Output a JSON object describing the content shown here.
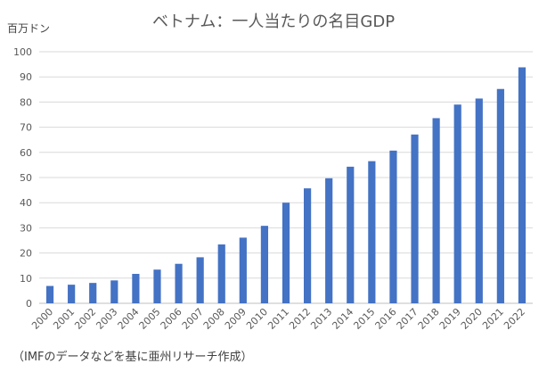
{
  "chart_data": {
    "type": "bar",
    "title": "ベトナム：一人当たりの名目GDP",
    "ylabel": "百万ドン",
    "xlabel": "",
    "ylim": [
      0,
      100
    ],
    "yticks": [
      0,
      10,
      20,
      30,
      40,
      50,
      60,
      70,
      80,
      90,
      100
    ],
    "grid": true,
    "legend": "none",
    "bar_color": "#4472C4",
    "categories": [
      "2000",
      "2001",
      "2002",
      "2003",
      "2004",
      "2005",
      "2006",
      "2007",
      "2008",
      "2009",
      "2010",
      "2011",
      "2012",
      "2013",
      "2014",
      "2015",
      "2016",
      "2017",
      "2018",
      "2019",
      "2020",
      "2021",
      "2022"
    ],
    "series": [
      {
        "values": [
          6.9,
          7.4,
          8.1,
          9.1,
          11.7,
          13.4,
          15.7,
          18.3,
          23.4,
          26.1,
          30.8,
          40.0,
          45.7,
          49.7,
          54.3,
          56.5,
          60.7,
          67.1,
          73.6,
          79.0,
          81.4,
          85.2,
          93.8
        ]
      }
    ]
  },
  "source_note": "（IMFのデータなどを基に亜州リサーチ作成）"
}
